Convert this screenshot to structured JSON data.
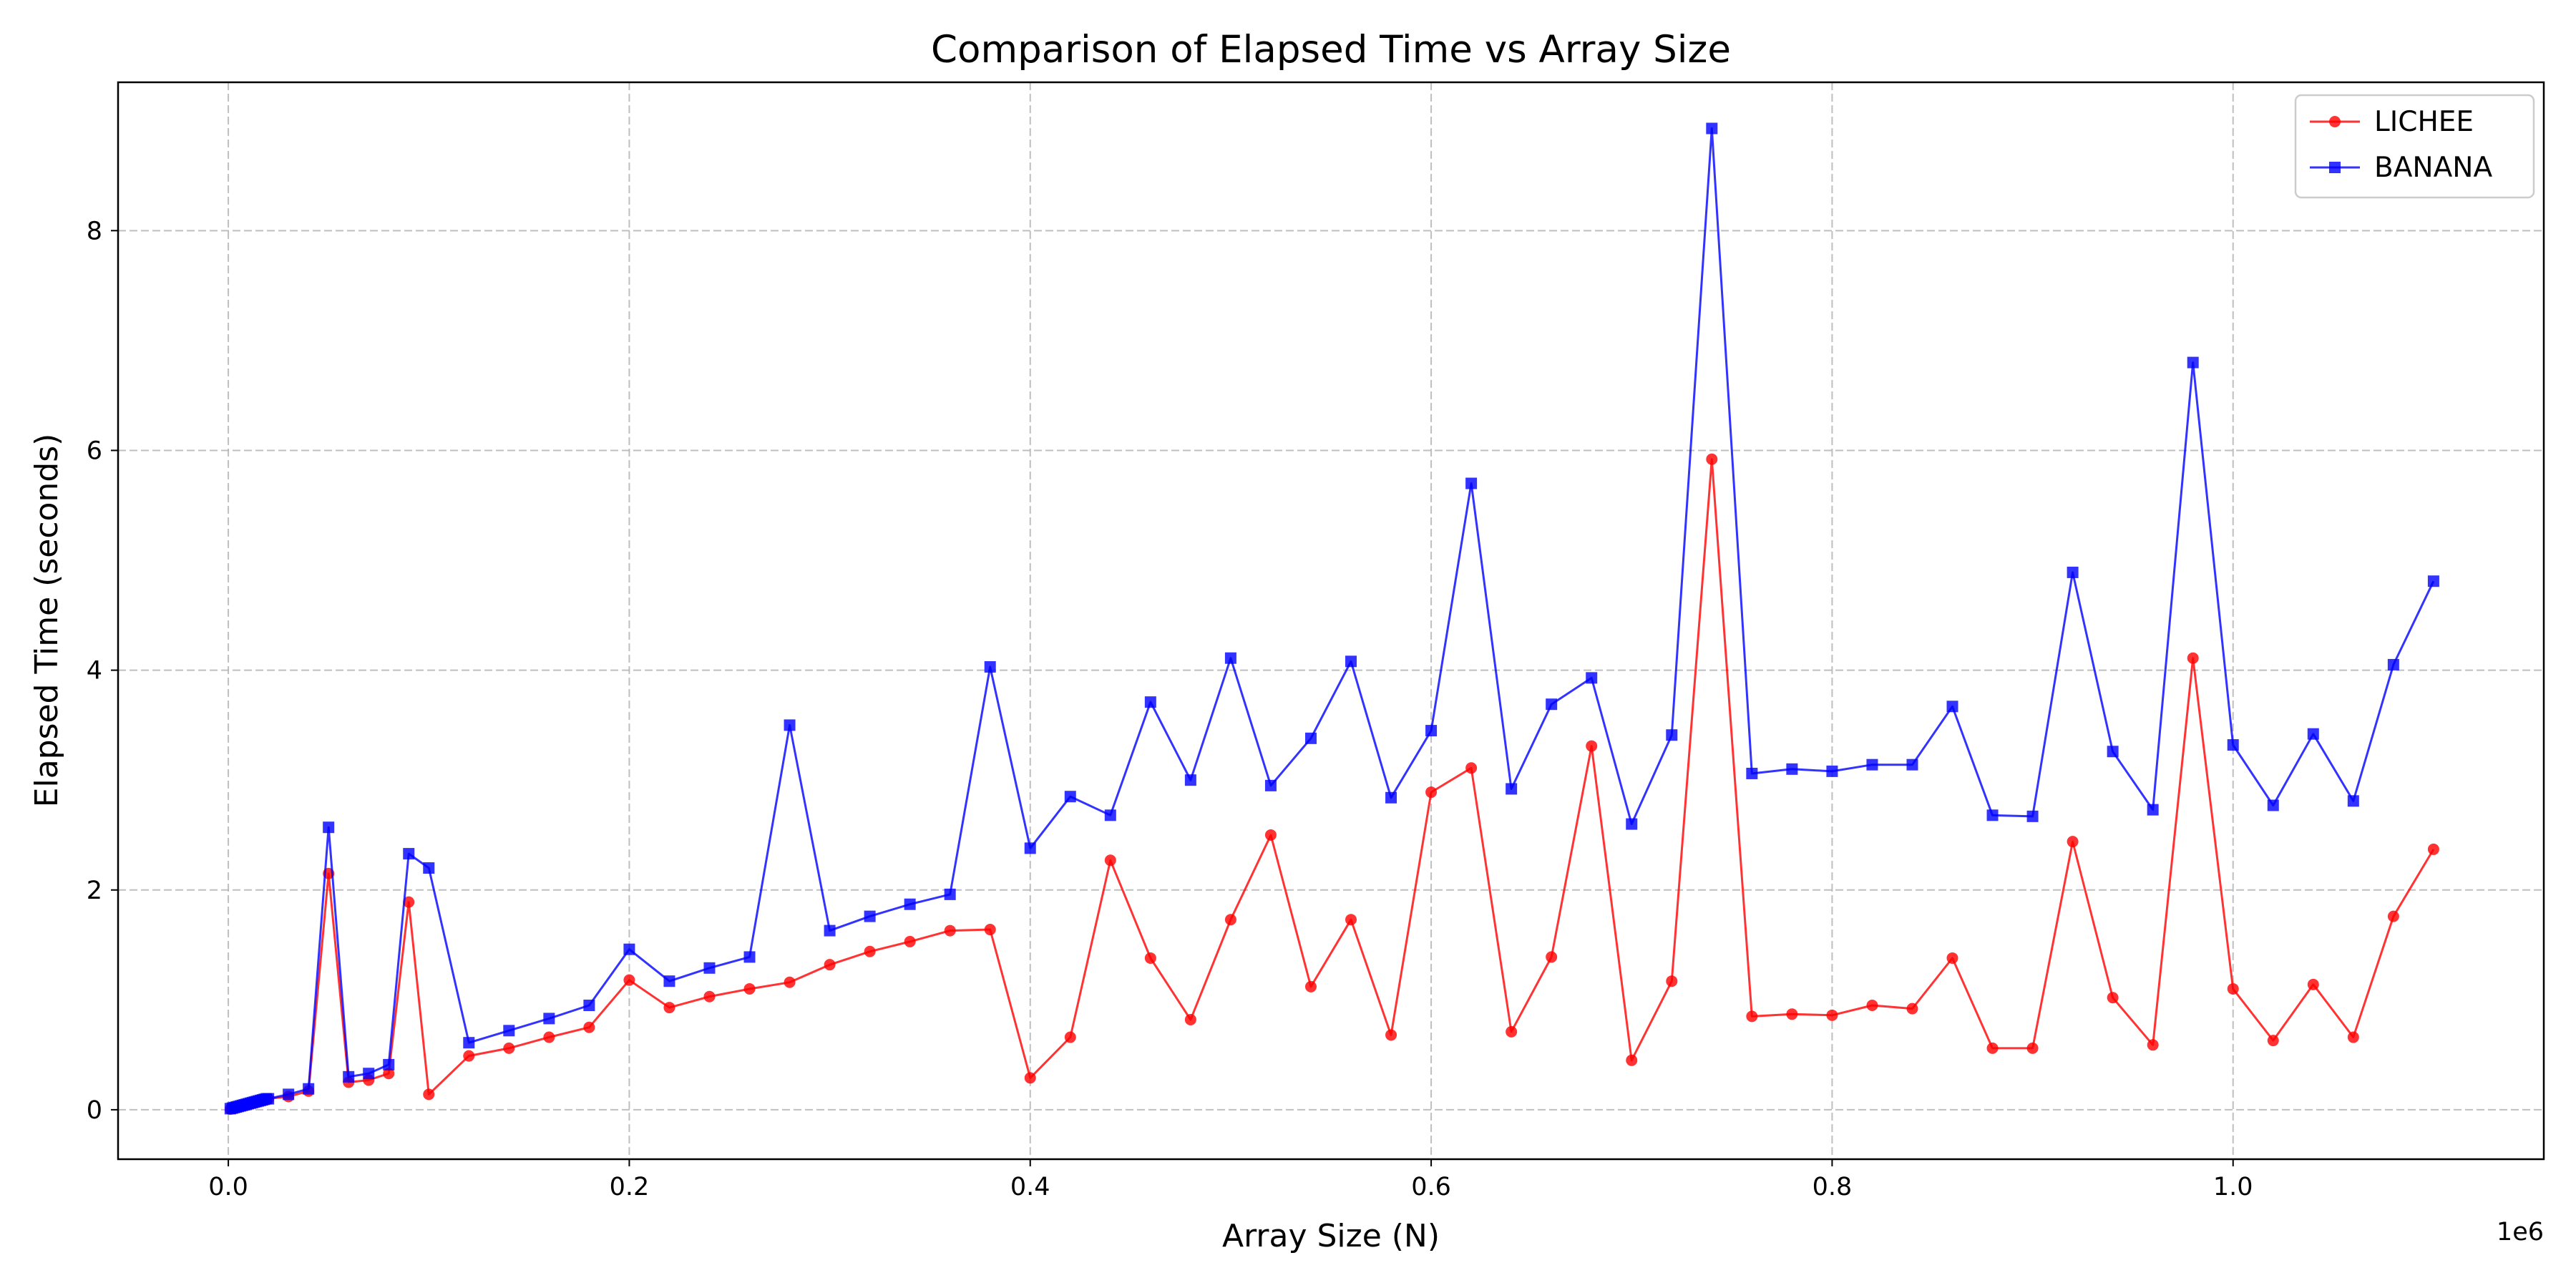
{
  "chart_data": {
    "type": "line",
    "title": "Comparison of Elapsed Time vs Array Size",
    "xlabel": "Array Size (N)",
    "ylabel": "Elapsed Time (seconds)",
    "x_offset_text": "1e6",
    "xlim": [
      -55000,
      1155000
    ],
    "ylim": [
      -0.45,
      9.35
    ],
    "xticks": [
      0,
      200000,
      400000,
      600000,
      800000,
      1000000
    ],
    "xtick_labels": [
      "0.0",
      "0.2",
      "0.4",
      "0.6",
      "0.8",
      "1.0"
    ],
    "yticks": [
      0,
      2,
      4,
      6,
      8
    ],
    "ytick_labels": [
      "0",
      "2",
      "4",
      "6",
      "8"
    ],
    "grid": true,
    "legend_position": "top-right",
    "x": [
      1000,
      2000,
      3000,
      4000,
      5000,
      6000,
      7000,
      8000,
      9000,
      10000,
      11000,
      12000,
      13000,
      14000,
      15000,
      16000,
      17000,
      18000,
      19000,
      20000,
      30000,
      40000,
      50000,
      60000,
      70000,
      80000,
      90000,
      100000,
      120000,
      140000,
      160000,
      180000,
      200000,
      220000,
      240000,
      260000,
      280000,
      300000,
      320000,
      340000,
      360000,
      380000,
      400000,
      420000,
      440000,
      460000,
      480000,
      500000,
      520000,
      540000,
      560000,
      580000,
      600000,
      620000,
      640000,
      660000,
      680000,
      700000,
      720000,
      740000,
      760000,
      780000,
      800000,
      820000,
      840000,
      860000,
      880000,
      900000,
      920000,
      940000,
      960000,
      980000,
      1000000,
      1020000,
      1040000,
      1060000,
      1080000,
      1100000
    ],
    "series": [
      {
        "name": "LICHEE",
        "color": "#ff0000",
        "marker": "circle",
        "values": [
          0.005,
          0.01,
          0.015,
          0.02,
          0.025,
          0.03,
          0.035,
          0.04,
          0.045,
          0.05,
          0.055,
          0.06,
          0.065,
          0.07,
          0.075,
          0.08,
          0.085,
          0.09,
          0.095,
          0.1,
          0.12,
          0.17,
          2.15,
          0.25,
          0.27,
          0.33,
          1.89,
          0.14,
          0.49,
          0.56,
          0.66,
          0.75,
          1.18,
          0.93,
          1.03,
          1.1,
          1.16,
          1.32,
          1.44,
          1.53,
          1.63,
          1.64,
          0.29,
          0.66,
          2.27,
          1.38,
          0.82,
          1.73,
          2.5,
          1.12,
          1.73,
          0.68,
          2.89,
          3.11,
          0.71,
          1.39,
          3.31,
          0.45,
          1.17,
          5.92,
          0.85,
          0.87,
          0.86,
          0.95,
          0.92,
          1.38,
          0.56,
          0.56,
          2.44,
          1.02,
          0.59,
          4.11,
          1.1,
          0.63,
          1.14,
          0.66,
          1.76,
          2.37
        ]
      },
      {
        "name": "BANANA",
        "color": "#0000ff",
        "marker": "square",
        "values": [
          0.01,
          0.015,
          0.02,
          0.025,
          0.03,
          0.035,
          0.04,
          0.045,
          0.05,
          0.055,
          0.06,
          0.065,
          0.07,
          0.075,
          0.08,
          0.085,
          0.09,
          0.095,
          0.1,
          0.1,
          0.14,
          0.19,
          2.57,
          0.3,
          0.33,
          0.41,
          2.33,
          2.2,
          0.61,
          0.72,
          0.83,
          0.95,
          1.46,
          1.17,
          1.29,
          1.39,
          3.5,
          1.63,
          1.76,
          1.87,
          1.96,
          4.03,
          2.38,
          2.85,
          2.68,
          3.71,
          3.0,
          4.11,
          2.95,
          3.38,
          4.08,
          2.84,
          3.45,
          5.7,
          2.92,
          3.69,
          3.93,
          2.6,
          3.41,
          8.93,
          3.06,
          3.1,
          3.08,
          3.14,
          3.14,
          3.67,
          2.68,
          2.67,
          4.89,
          3.26,
          2.73,
          6.8,
          3.32,
          2.77,
          3.42,
          2.81,
          4.05,
          4.81
        ]
      }
    ]
  }
}
